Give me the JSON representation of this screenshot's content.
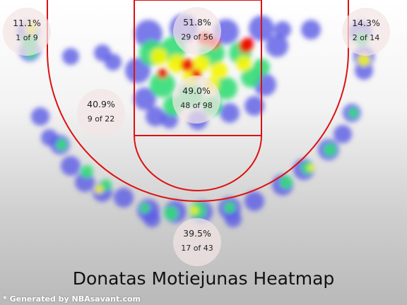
{
  "chart_data": {
    "type": "heatmap",
    "title": "Donatas Motiejunas Heatmap",
    "credit": "* Generated by NBAsavant.com",
    "zones": [
      {
        "id": "left-corner",
        "pct": "11.1%",
        "made_of": "1 of 9",
        "made": 1,
        "attempts": 9
      },
      {
        "id": "paint-upper",
        "pct": "51.8%",
        "made_of": "29 of 56",
        "made": 29,
        "attempts": 56
      },
      {
        "id": "right-corner",
        "pct": "14.3%",
        "made_of": "2 of 14",
        "made": 2,
        "attempts": 14
      },
      {
        "id": "left-wing-mid",
        "pct": "40.9%",
        "made_of": "9 of 22",
        "made": 9,
        "attempts": 22
      },
      {
        "id": "paint-lower",
        "pct": "49.0%",
        "made_of": "48 of 98",
        "made": 48,
        "attempts": 98
      },
      {
        "id": "top-of-key-three",
        "pct": "39.5%",
        "made_of": "17 of 43",
        "made": 17,
        "attempts": 43
      }
    ],
    "colors": {
      "court_lines": "#dd1111",
      "low_density": "#5a5ae6",
      "mid_density": "#33dd77",
      "high_density": "#f5f500",
      "peak_density": "#ee1100",
      "zone_bubble": "#f2e4e4"
    }
  }
}
